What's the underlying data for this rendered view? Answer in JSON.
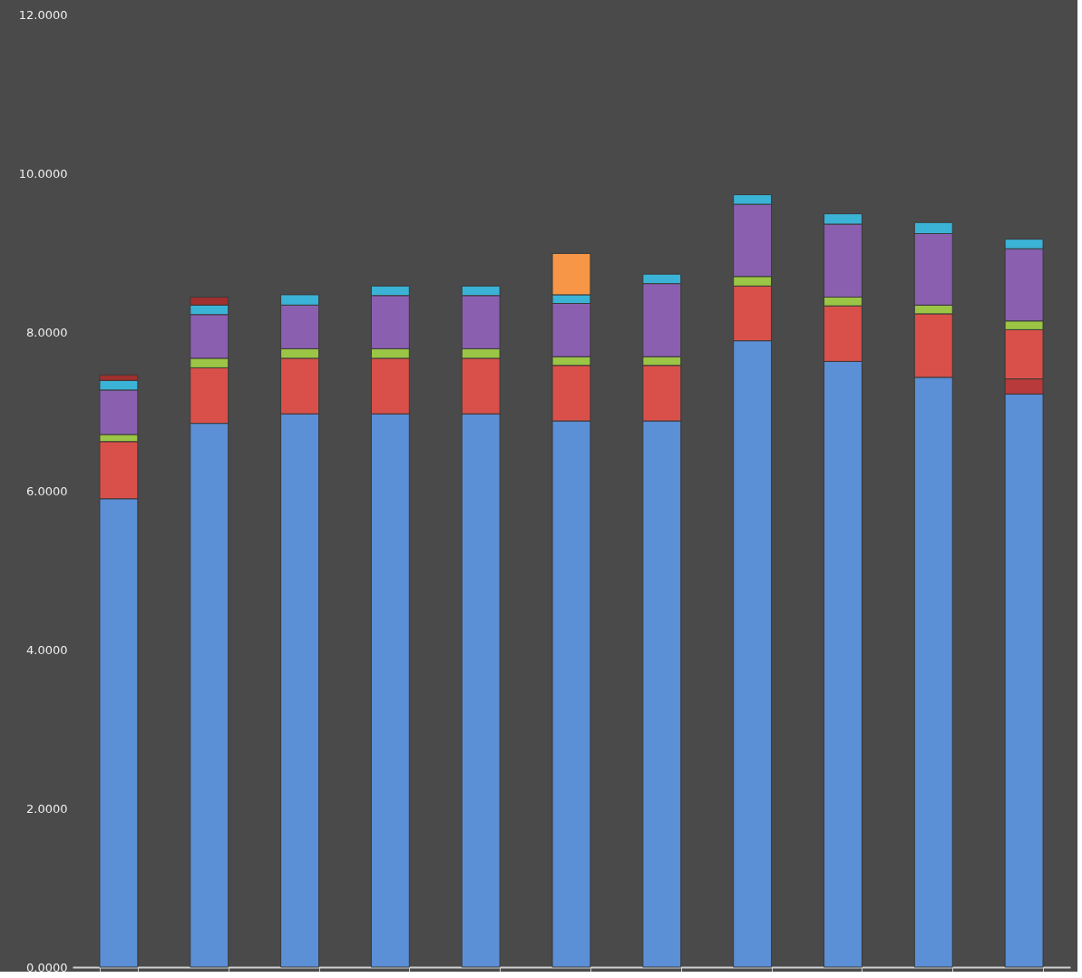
{
  "chart_data": {
    "type": "bar",
    "stacked": true,
    "categories": [
      null,
      null,
      null,
      null,
      null,
      null,
      null,
      null,
      null,
      null,
      null
    ],
    "series": [
      {
        "color": "#5b8fd6",
        "values": [
          5.9,
          6.85,
          6.97,
          6.97,
          6.97,
          6.88,
          6.88,
          7.89,
          7.63,
          7.43,
          7.22
        ]
      },
      {
        "color": "#b83a3a",
        "values": [
          null,
          null,
          null,
          null,
          null,
          null,
          null,
          null,
          null,
          null,
          0.19
        ]
      },
      {
        "color": "#d9504a",
        "values": [
          0.72,
          0.7,
          0.7,
          0.7,
          0.7,
          0.7,
          0.7,
          0.69,
          0.7,
          0.8,
          0.62
        ]
      },
      {
        "color": "#9bc544",
        "values": [
          0.09,
          0.12,
          0.12,
          0.12,
          0.12,
          0.11,
          0.11,
          0.12,
          0.11,
          0.11,
          0.11
        ]
      },
      {
        "color": "#8a5fb0",
        "values": [
          0.56,
          0.55,
          0.55,
          0.67,
          0.67,
          0.67,
          0.92,
          0.91,
          0.92,
          0.9,
          0.91
        ]
      },
      {
        "color": "#3bb3d6",
        "values": [
          0.12,
          0.12,
          0.13,
          0.12,
          0.12,
          0.11,
          0.12,
          0.12,
          0.13,
          0.14,
          0.12
        ]
      },
      {
        "color": "#a0302e",
        "values": [
          0.07,
          0.1,
          null,
          null,
          null,
          null,
          null,
          null,
          null,
          null,
          null
        ]
      },
      {
        "color": "#f79646",
        "values": [
          null,
          null,
          null,
          null,
          null,
          0.52,
          null,
          null,
          null,
          null,
          null
        ]
      }
    ],
    "ylim": [
      0,
      12
    ],
    "yticks": [
      {
        "value": 0,
        "label": "0.0000"
      },
      {
        "value": 2,
        "label": "2.0000"
      },
      {
        "value": 4,
        "label": "4.0000"
      },
      {
        "value": 6,
        "label": "6.0000"
      },
      {
        "value": 8,
        "label": "8.0000"
      },
      {
        "value": 10,
        "label": "10.0000"
      },
      {
        "value": 12,
        "label": "12.0000"
      }
    ],
    "tick_labels": "y",
    "grid": false
  }
}
